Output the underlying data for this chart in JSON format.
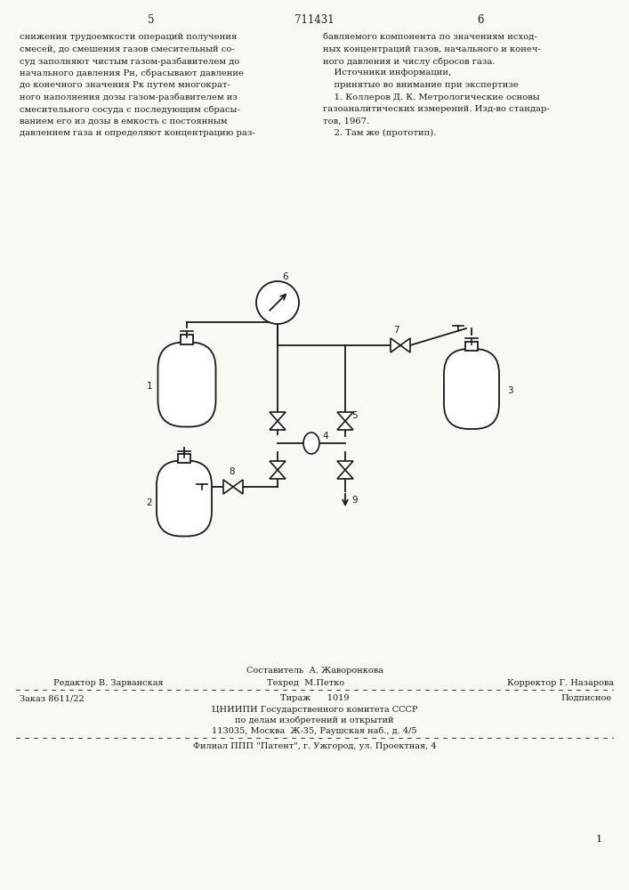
{
  "page_number_top": "711431",
  "col_left": "5",
  "col_right": "6",
  "text_left": "снижения трудоемкости операций получения\nсмесей, до смешения газов смесительный со-\nсуд заполняют чистым газом-разбавителем до\nначального давления Рн, сбрасывают давление\nдо конечного значения Рк путем многократ-\nного наполнения дозы газом-разбавителем из\nсмесительного сосуда с последующим сбрасы-\nванием его из дозы в емкость с постоянным\nдавлением газа и определяют концентрацию раз-",
  "text_right": "бавляемого компонента по значениям исход-\nных концентраций газов, начального и конеч-\nного давления и числу сбросов газа.\n    Источники информации,\n    принятые во внимание при экспертизе\n    1. Коллеров Д. К. Метрологические основы\nгазоаналитических измерений. Изд-во стандар-\nтов, 1967.\n    2. Там же (прототип).",
  "footer_sestavitel": "Составитель  А. Жаворонкова",
  "footer_korrektor": "Корректор Г. Назарова",
  "footer_redaktor": "Редактор В. Зарванская",
  "footer_tekhred": "Техред  М.Петко",
  "footer_order": "Заказ 8611/22",
  "footer_tirazh": "Тираж      1019",
  "footer_podpisnoe": "Подписное",
  "footer_org1": "ЦНИИПИ Государственного комитета СССР",
  "footer_org2": "по делам изобретений и открытий",
  "footer_org3": "113035, Москва  Ж-35, Раушская наб., д. 4/5",
  "footer_filial": "Филиал ППП \"Патент\", г. Ужгород, ул. Проектная, 4",
  "page_num_bottom": "1",
  "bg_color": "#f8f8f5",
  "text_color": "#1a1a1a",
  "diagram_color": "#1a1a1a"
}
